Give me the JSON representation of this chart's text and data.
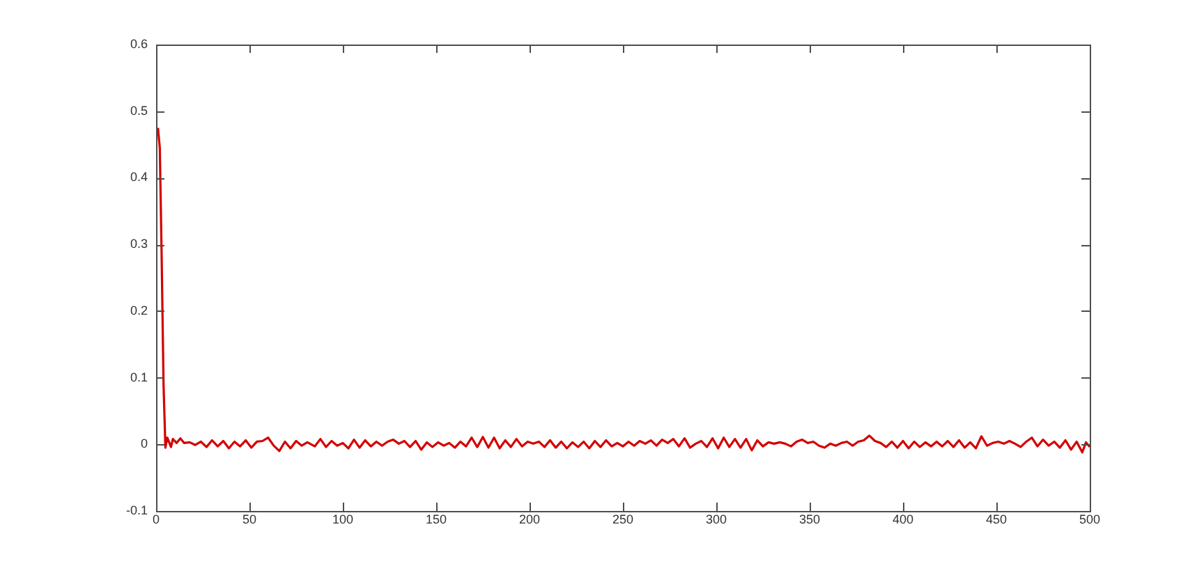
{
  "chart_data": {
    "type": "line",
    "x": [
      1,
      2,
      3,
      4,
      5,
      6,
      8,
      9,
      11,
      13,
      15,
      18,
      21,
      24,
      27,
      30,
      33,
      36,
      39,
      42,
      45,
      48,
      51,
      54,
      57,
      60,
      63,
      66,
      69,
      72,
      75,
      78,
      81,
      85,
      88,
      91,
      94,
      97,
      100,
      103,
      106,
      109,
      112,
      115,
      118,
      121,
      124,
      127,
      130,
      133,
      136,
      139,
      142,
      145,
      148,
      151,
      154,
      157,
      160,
      163,
      166,
      169,
      172,
      175,
      178,
      181,
      184,
      187,
      190,
      193,
      196,
      199,
      202,
      205,
      208,
      211,
      214,
      217,
      220,
      223,
      226,
      229,
      232,
      235,
      238,
      241,
      244,
      247,
      250,
      253,
      256,
      259,
      262,
      265,
      268,
      271,
      274,
      277,
      280,
      283,
      286,
      289,
      292,
      295,
      298,
      301,
      304,
      307,
      310,
      313,
      316,
      319,
      322,
      325,
      328,
      331,
      334,
      337,
      340,
      343,
      346,
      349,
      352,
      355,
      358,
      361,
      364,
      367,
      370,
      373,
      376,
      379,
      382,
      385,
      388,
      391,
      394,
      397,
      400,
      403,
      406,
      409,
      412,
      415,
      418,
      421,
      424,
      427,
      430,
      433,
      436,
      439,
      442,
      445,
      448,
      451,
      454,
      457,
      460,
      463,
      466,
      469,
      472,
      475,
      478,
      481,
      484,
      487,
      490,
      493,
      496,
      498,
      500
    ],
    "series": [
      {
        "color": "#d40000",
        "values": [
          0.475,
          0.445,
          0.28,
          0.09,
          -0.005,
          0.01,
          -0.004,
          0.008,
          0.002,
          0.009,
          0.002,
          0.003,
          -0.001,
          0.004,
          -0.004,
          0.006,
          -0.003,
          0.005,
          -0.006,
          0.004,
          -0.003,
          0.006,
          -0.005,
          0.004,
          0.005,
          0.01,
          -0.002,
          -0.01,
          0.004,
          -0.006,
          0.005,
          -0.002,
          0.003,
          -0.003,
          0.008,
          -0.004,
          0.005,
          -0.002,
          0.002,
          -0.006,
          0.007,
          -0.005,
          0.006,
          -0.003,
          0.004,
          -0.002,
          0.004,
          0.007,
          0.001,
          0.005,
          -0.004,
          0.005,
          -0.008,
          0.003,
          -0.004,
          0.003,
          -0.002,
          0.002,
          -0.005,
          0.004,
          -0.003,
          0.01,
          -0.004,
          0.011,
          -0.005,
          0.01,
          -0.006,
          0.006,
          -0.004,
          0.008,
          -0.003,
          0.004,
          0.001,
          0.004,
          -0.004,
          0.006,
          -0.005,
          0.004,
          -0.006,
          0.003,
          -0.004,
          0.004,
          -0.006,
          0.005,
          -0.004,
          0.006,
          -0.003,
          0.002,
          -0.003,
          0.004,
          -0.002,
          0.005,
          0.001,
          0.006,
          -0.002,
          0.007,
          0.002,
          0.008,
          -0.003,
          0.009,
          -0.005,
          0.001,
          0.005,
          -0.004,
          0.009,
          -0.006,
          0.01,
          -0.004,
          0.008,
          -0.005,
          0.008,
          -0.009,
          0.006,
          -0.003,
          0.003,
          0.001,
          0.003,
          0.001,
          -0.003,
          0.004,
          0.007,
          0.002,
          0.004,
          -0.002,
          -0.005,
          0.001,
          -0.002,
          0.002,
          0.004,
          -0.002,
          0.004,
          0.006,
          0.013,
          0.005,
          0.002,
          -0.004,
          0.004,
          -0.005,
          0.005,
          -0.006,
          0.004,
          -0.004,
          0.003,
          -0.003,
          0.004,
          -0.003,
          0.005,
          -0.004,
          0.006,
          -0.005,
          0.003,
          -0.006,
          0.012,
          -0.002,
          0.002,
          0.004,
          0.001,
          0.005,
          0.001,
          -0.004,
          0.004,
          0.01,
          -0.003,
          0.007,
          -0.002,
          0.004,
          -0.005,
          0.006,
          -0.008,
          0.004,
          -0.012,
          0.003,
          -0.004
        ]
      }
    ],
    "xlim": [
      0,
      500
    ],
    "xticks": [
      0,
      50,
      100,
      150,
      200,
      250,
      300,
      350,
      400,
      450,
      500
    ],
    "ylim": [
      -0.1,
      0.6
    ],
    "yticks": [
      -0.1,
      0,
      0.1,
      0.2,
      0.3,
      0.4,
      0.5,
      0.6
    ],
    "grid": false,
    "legend": false,
    "marker": "none",
    "line_style": "solid"
  }
}
